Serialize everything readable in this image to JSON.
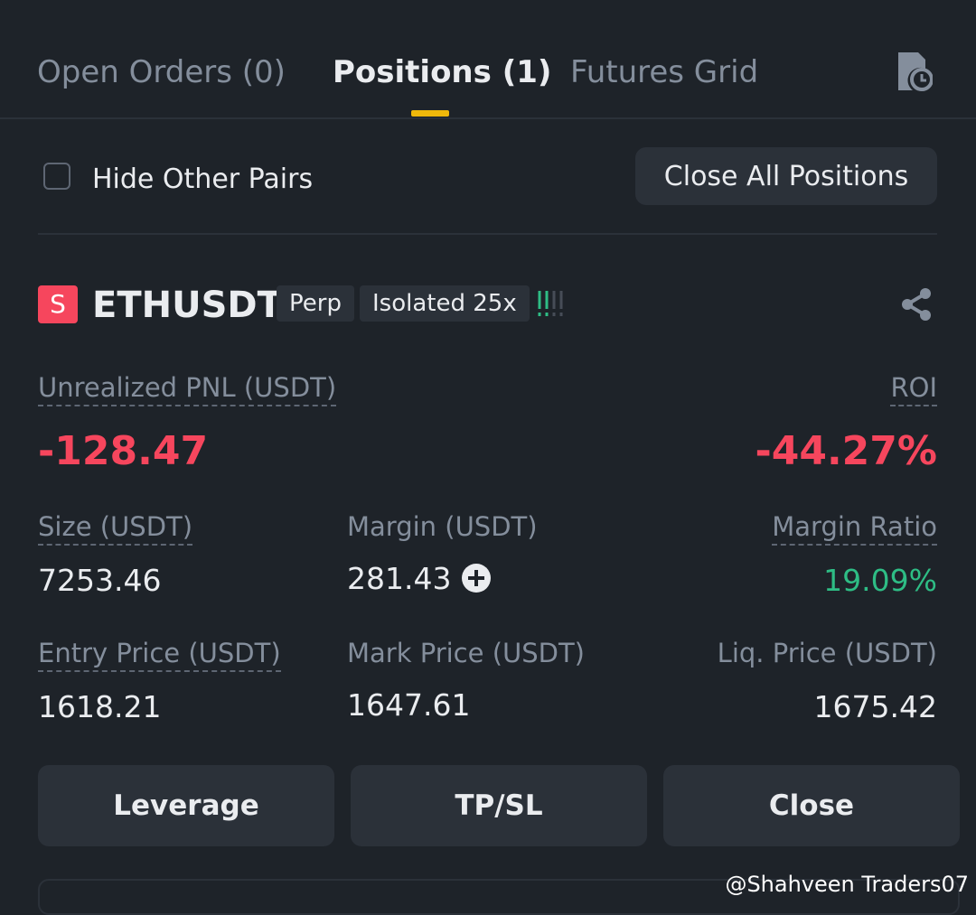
{
  "tabs": [
    "Open Orders (0)",
    "Positions (1)",
    "Futures Grid"
  ],
  "filter": {
    "label": "Hide Other Pairs",
    "button": "Close All Positions"
  },
  "position": {
    "badge": "S",
    "symbol": "ETHUSDT",
    "tags": [
      "Perp",
      "Isolated 25x"
    ],
    "pnl": {
      "label": "Unrealized PNL (USDT)",
      "value": "-128.47"
    },
    "roi": {
      "label": "ROI",
      "value": "-44.27%"
    },
    "fields": [
      {
        "label": "Size (USDT)",
        "value": "7253.46"
      },
      {
        "label": "Margin (USDT)",
        "value": "281.43"
      },
      {
        "label": "Margin Ratio",
        "value": "19.09%"
      },
      {
        "label": "Entry Price (USDT)",
        "value": "1618.21"
      },
      {
        "label": "Mark Price (USDT)",
        "value": "1647.61"
      },
      {
        "label": "Liq. Price (USDT)",
        "value": "1675.42"
      }
    ],
    "actions": [
      "Leverage",
      "TP/SL",
      "Close"
    ]
  },
  "watermark": "@Shahveen Traders07"
}
